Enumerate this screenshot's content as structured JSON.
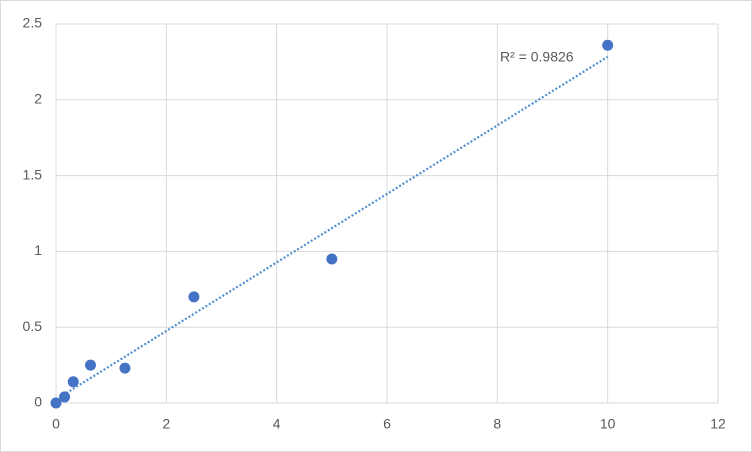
{
  "chart_data": {
    "type": "scatter",
    "series": [
      {
        "color": "#4472c4",
        "x": [
          0,
          0.156,
          0.3125,
          0.625,
          1.25,
          2.5,
          5,
          10
        ],
        "values": [
          0,
          0.04,
          0.14,
          0.25,
          0.23,
          0.7,
          0.95,
          2.36
        ]
      }
    ],
    "trendline": "linear",
    "trendline_color": "#4f8fcf",
    "annotation": "R² = 0.9826",
    "xlim": [
      0,
      12
    ],
    "xticks": [
      0,
      2,
      4,
      6,
      8,
      10,
      12
    ],
    "ylim": [
      0,
      2.5
    ],
    "yticks": [
      0,
      0.5,
      1,
      1.5,
      2,
      2.5
    ],
    "grid": true
  }
}
